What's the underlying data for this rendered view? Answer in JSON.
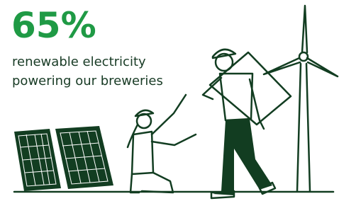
{
  "stat": "65%",
  "caption": [
    "renewable electricity",
    "powering our breweries"
  ]
}
